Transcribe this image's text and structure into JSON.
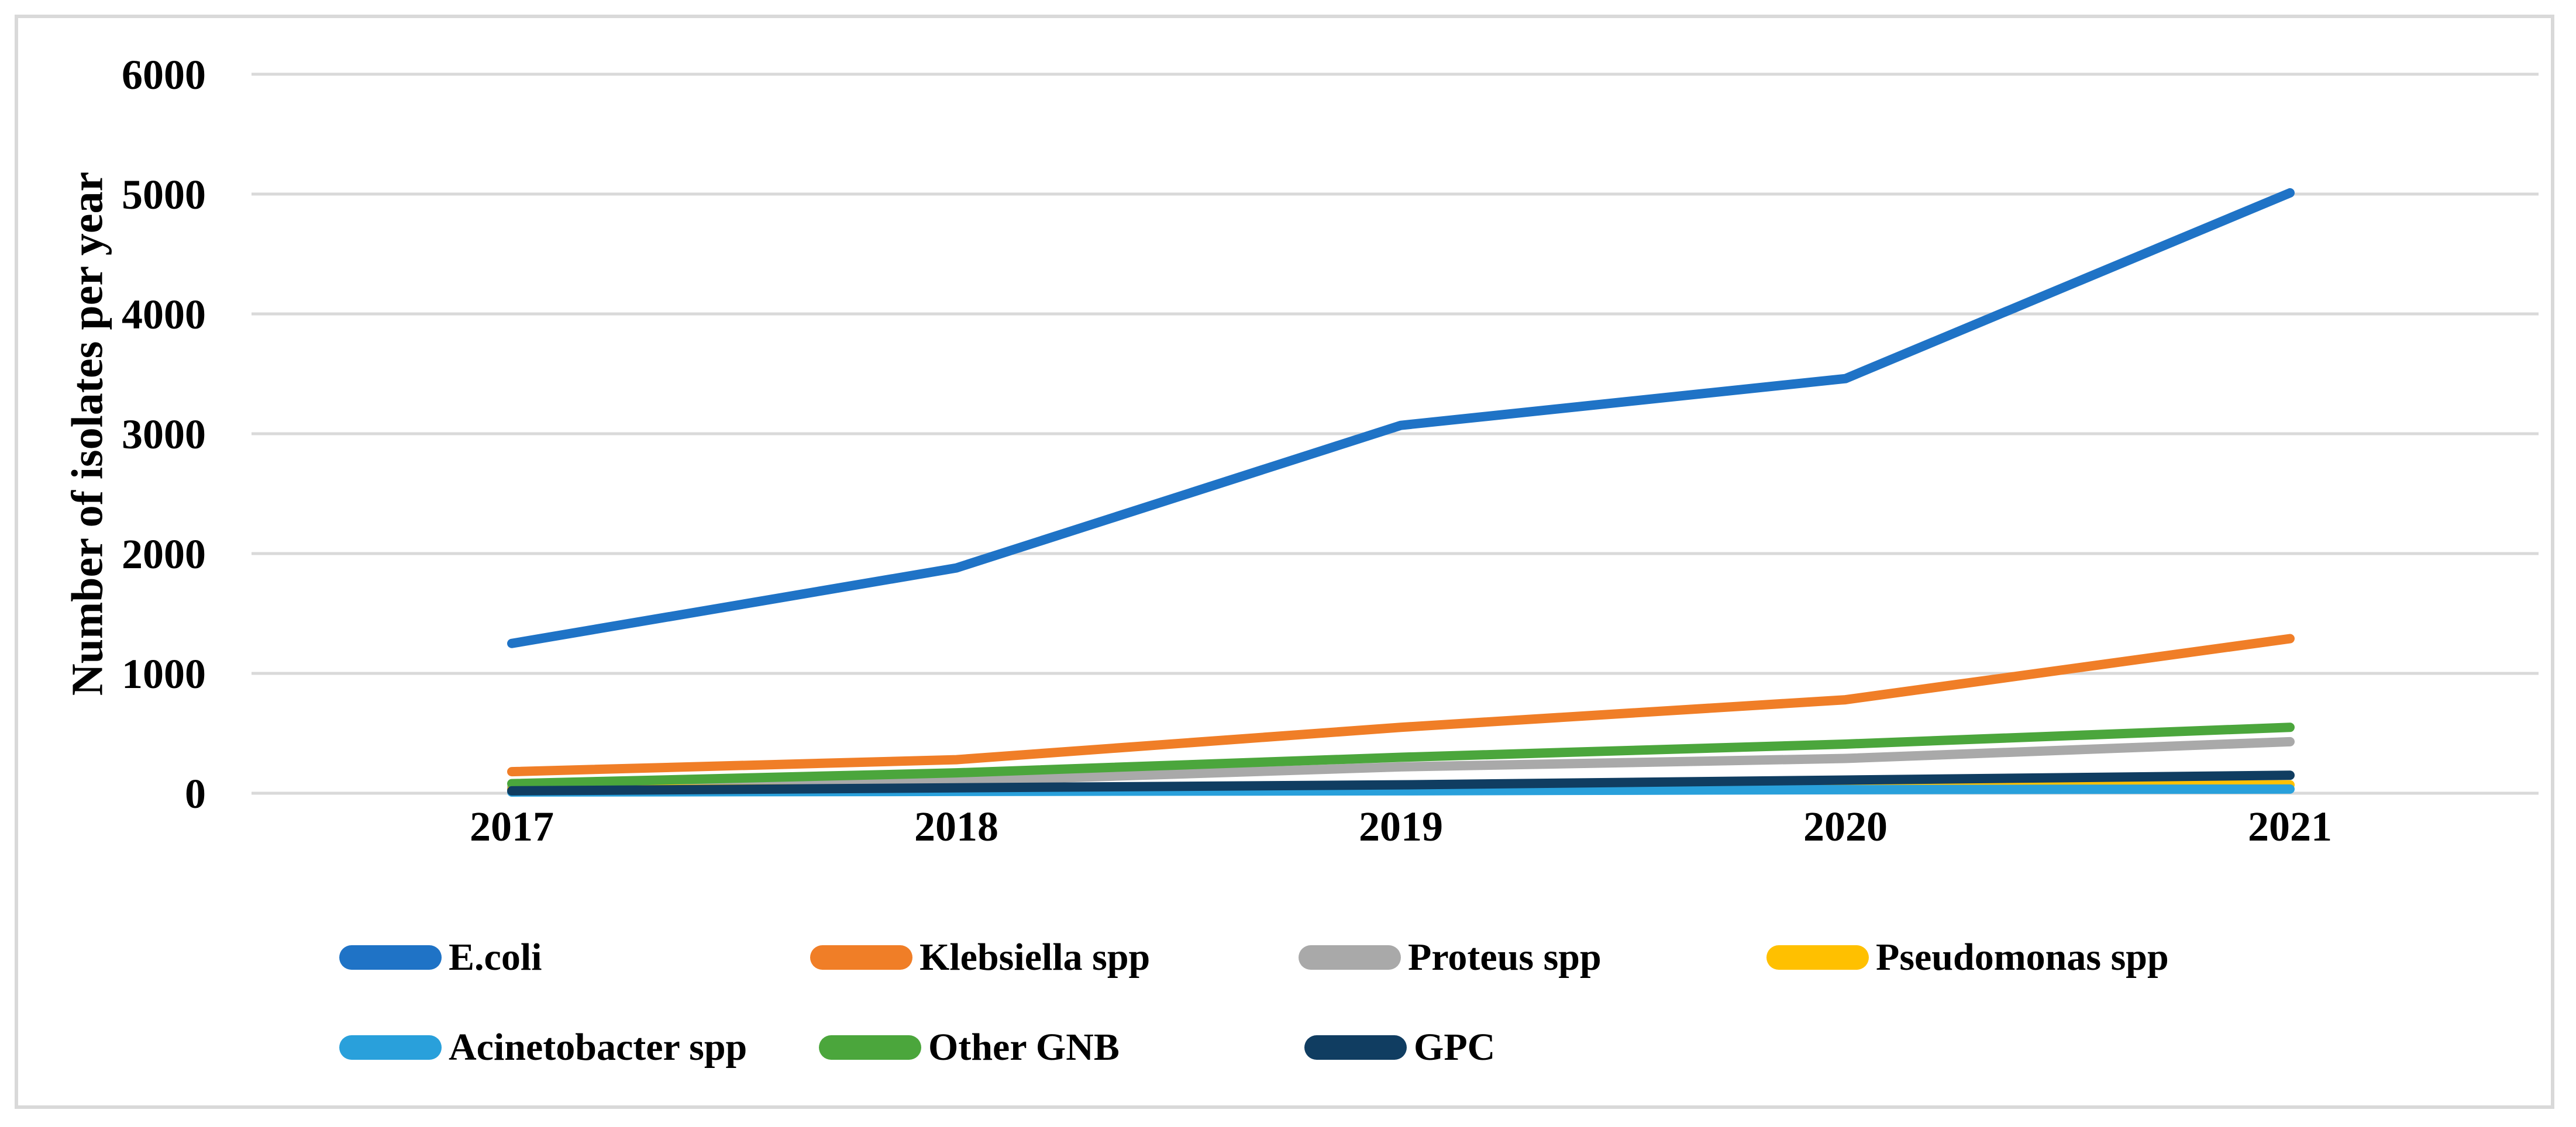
{
  "figure": {
    "description": "Line chart of bacterial isolate counts per year, 2017-2021"
  },
  "chart_data": {
    "type": "line",
    "title": "",
    "xlabel": "",
    "ylabel": "Number of isolates per year",
    "categories": [
      "2017",
      "2018",
      "2019",
      "2020",
      "2021"
    ],
    "yticks": [
      0,
      1000,
      2000,
      3000,
      4000,
      5000,
      6000
    ],
    "ylim": [
      0,
      6000
    ],
    "grid": "horizontal",
    "legend_position": "bottom",
    "series": [
      {
        "name": "E.coli",
        "color": "#1F73C6",
        "values": [
          1250,
          1880,
          3070,
          3460,
          5010
        ]
      },
      {
        "name": "Klebsiella spp",
        "color": "#F07E27",
        "values": [
          180,
          280,
          550,
          780,
          1290
        ]
      },
      {
        "name": "Proteus spp",
        "color": "#A9A9A9",
        "values": [
          50,
          100,
          220,
          290,
          430
        ]
      },
      {
        "name": "Pseudomonas spp",
        "color": "#FFC000",
        "values": [
          30,
          40,
          50,
          60,
          70
        ]
      },
      {
        "name": "Acinetobacter spp",
        "color": "#29A0DB",
        "values": [
          10,
          15,
          20,
          30,
          35
        ]
      },
      {
        "name": "Other GNB",
        "color": "#4BA63C",
        "values": [
          80,
          170,
          300,
          410,
          550
        ]
      },
      {
        "name": "GPC",
        "color": "#103D61",
        "values": [
          20,
          45,
          70,
          110,
          150
        ]
      }
    ]
  },
  "colors": {
    "gridline": "#D9D9D9",
    "frame_border": "#D9D9D9",
    "text": "#000000",
    "background": "#FFFFFF"
  }
}
